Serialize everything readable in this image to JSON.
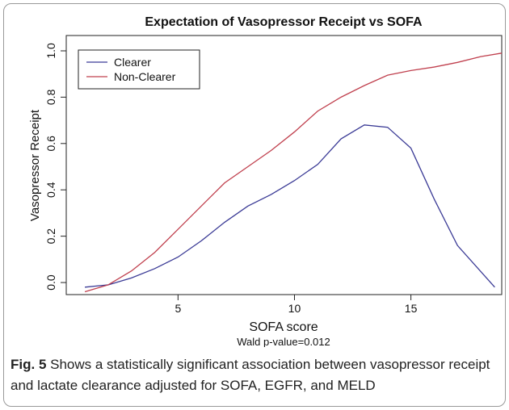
{
  "chart_data": {
    "type": "line",
    "title": "Expectation of Vasopressor Receipt vs SOFA",
    "xlabel": "SOFA score",
    "ylabel": "Vasopressor Receipt",
    "subtitle": "Wald p-value=0.012",
    "xlim": [
      0.2,
      18.9
    ],
    "xticks": [
      5,
      10,
      15
    ],
    "ylim": [
      -0.052,
      1.066
    ],
    "yticks": [
      {
        "value": 0,
        "label": "0.0"
      },
      0.2,
      0.4,
      0.6,
      0.8,
      {
        "value": 1,
        "label": "1.0"
      }
    ],
    "legend": "top-left",
    "series": [
      {
        "name": "Clearer",
        "color": "#3b3b96",
        "x": [
          1,
          2,
          3,
          4,
          5,
          6,
          7,
          8,
          9,
          10,
          11,
          12,
          13,
          14,
          15,
          16,
          17,
          18.6
        ],
        "values": [
          -0.02,
          -0.01,
          0.02,
          0.06,
          0.11,
          0.18,
          0.26,
          0.33,
          0.38,
          0.44,
          0.51,
          0.62,
          0.68,
          0.67,
          0.58,
          0.36,
          0.16,
          -0.02
        ]
      },
      {
        "name": "Non-Clearer",
        "color": "#c0404e",
        "x": [
          1,
          2,
          3,
          4,
          5,
          6,
          7,
          8,
          9,
          10,
          11,
          12,
          13,
          14,
          15,
          16,
          17,
          18,
          18.9
        ],
        "values": [
          -0.04,
          -0.01,
          0.05,
          0.13,
          0.23,
          0.33,
          0.43,
          0.5,
          0.57,
          0.65,
          0.74,
          0.8,
          0.85,
          0.895,
          0.915,
          0.93,
          0.95,
          0.975,
          0.99
        ]
      }
    ]
  },
  "caption": {
    "label": "Fig. 5",
    "text": " Shows a statistically significant association between vasopressor receipt and lactate clearance adjusted for SOFA, EGFR, and MELD"
  }
}
